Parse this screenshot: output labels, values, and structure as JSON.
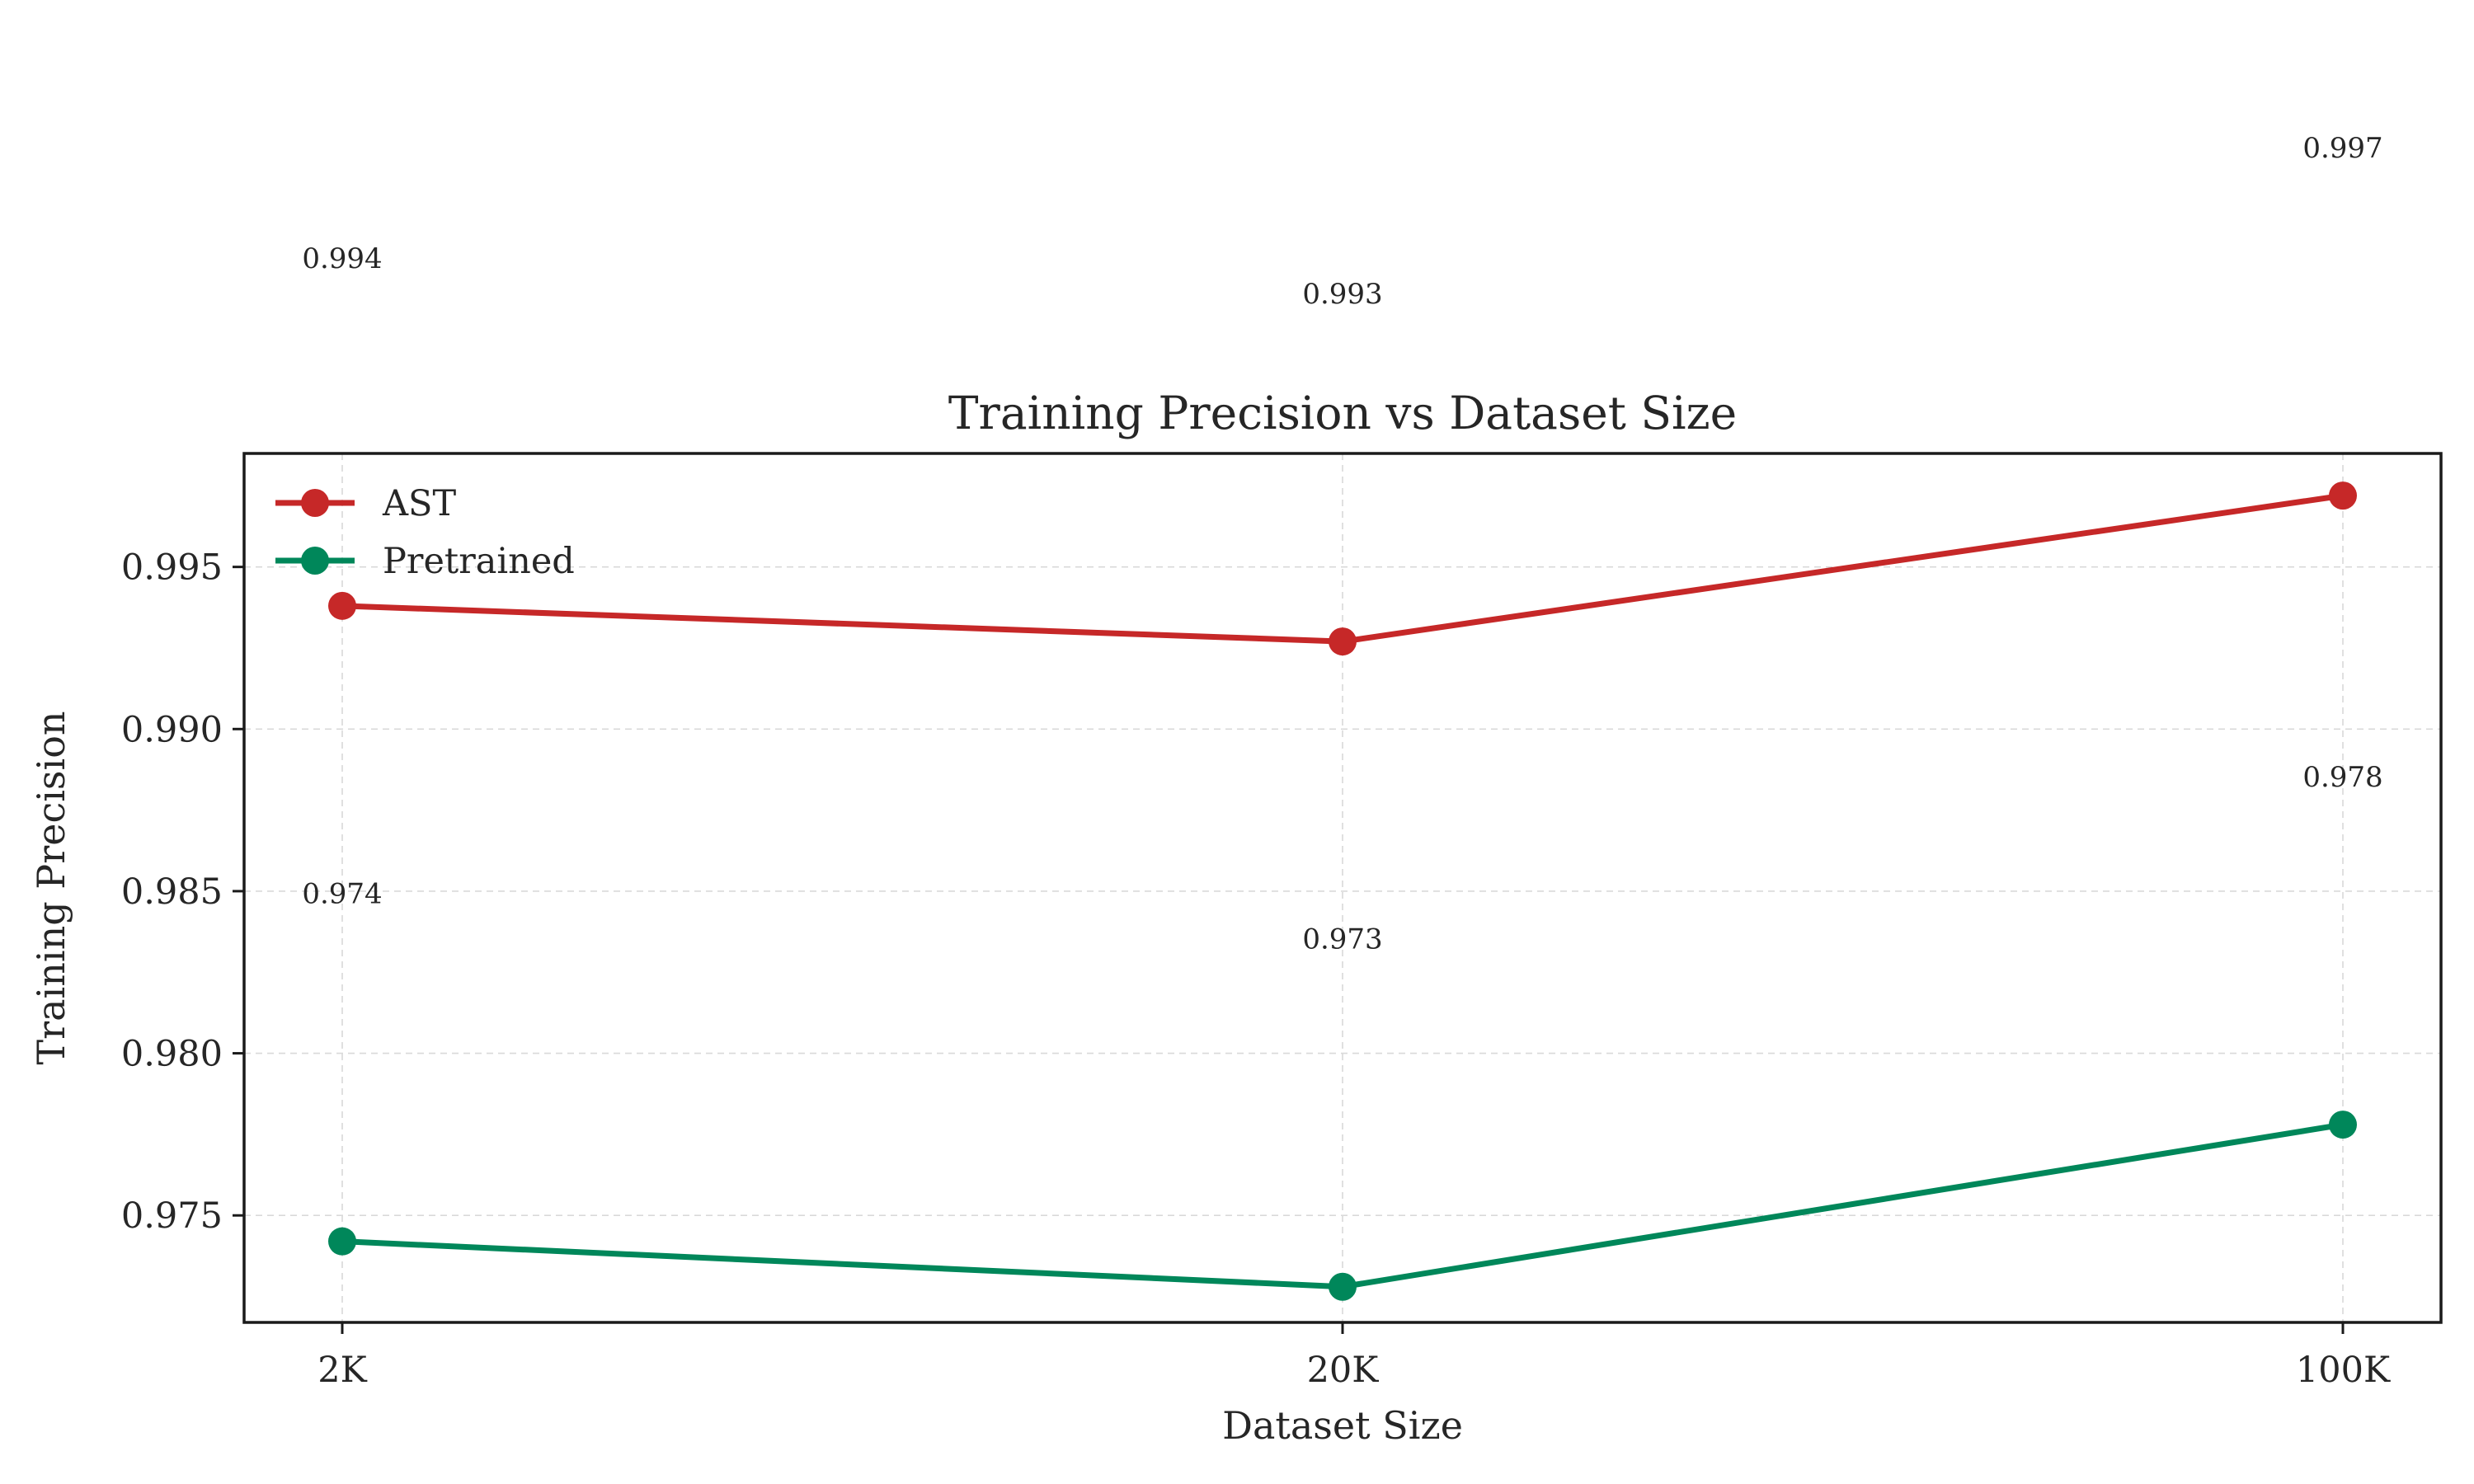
{
  "chart_data": {
    "type": "line",
    "title": "Training Precision vs Dataset Size",
    "xlabel": "Dataset Size",
    "ylabel": "Training Precision",
    "categories": [
      "2K",
      "20K",
      "100K"
    ],
    "ylim": [
      0.9717,
      0.9985
    ],
    "yticks": [
      0.975,
      0.98,
      0.985,
      0.99,
      0.995
    ],
    "ytick_labels": [
      "0.975",
      "0.980",
      "0.985",
      "0.990",
      "0.995"
    ],
    "grid": true,
    "legend_position": "upper-left",
    "series": [
      {
        "name": "AST",
        "color": "#c62828",
        "values": [
          0.9938,
          0.9927,
          0.9972
        ],
        "labels": [
          "0.994",
          "0.993",
          "0.997"
        ]
      },
      {
        "name": "Pretrained",
        "color": "#00875a",
        "values": [
          0.9742,
          0.9728,
          0.9778
        ],
        "labels": [
          "0.974",
          "0.973",
          "0.978"
        ]
      }
    ]
  }
}
